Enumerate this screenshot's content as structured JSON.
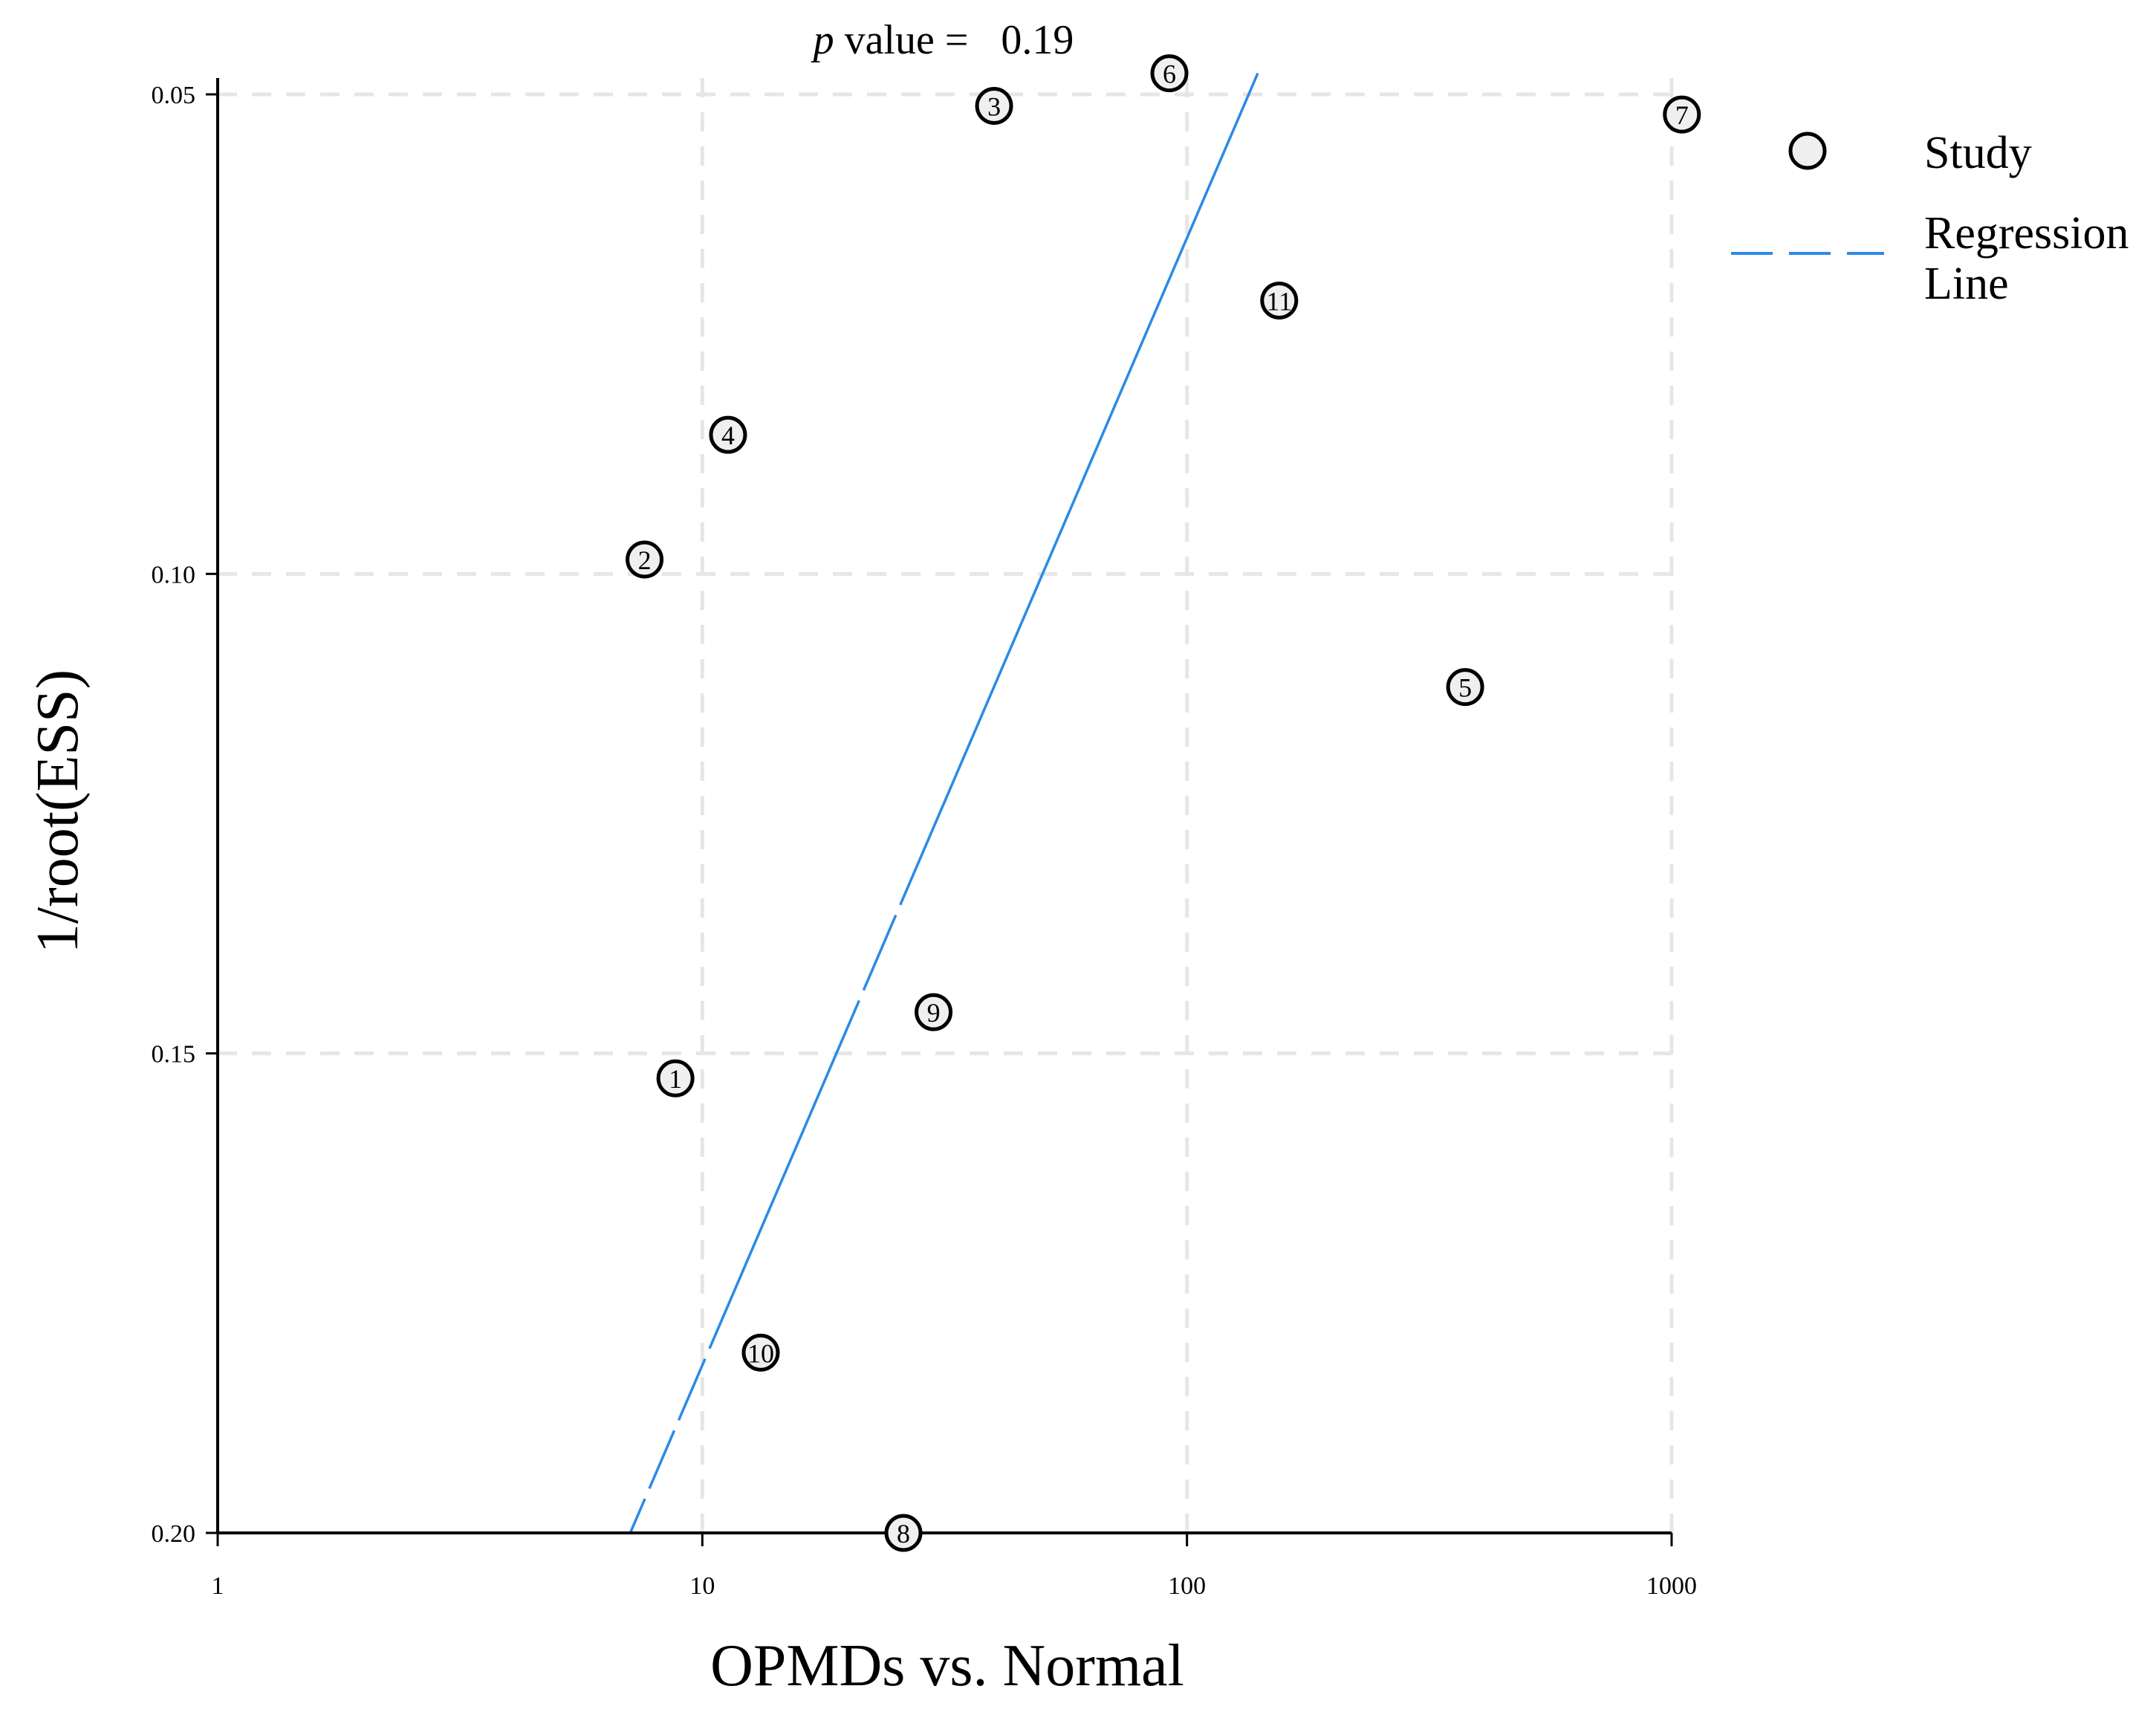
{
  "chart_data": {
    "type": "scatter",
    "title": "",
    "xlabel": "OPMDs vs. Normal",
    "ylabel": "1/root(ESS)",
    "x_scale": "log",
    "xlim": [
      1,
      1000
    ],
    "ylim": [
      0.05,
      0.2
    ],
    "y_inverted": true,
    "x_ticks": [
      1,
      10,
      100,
      1000
    ],
    "x_tick_labels": [
      "1",
      "10",
      "100",
      "1000"
    ],
    "y_ticks": [
      0.05,
      0.1,
      0.15,
      0.2
    ],
    "y_tick_labels": [
      "0.05",
      "0.10",
      "0.15",
      "0.20"
    ],
    "grid": true,
    "annotation": {
      "prefix": "p",
      "text": "value =",
      "value": "0.19"
    },
    "points": [
      {
        "label": "1",
        "x": 8.8,
        "y": 0.1526
      },
      {
        "label": "2",
        "x": 7.6,
        "y": 0.0985
      },
      {
        "label": "3",
        "x": 40,
        "y": 0.0512
      },
      {
        "label": "4",
        "x": 11.3,
        "y": 0.0855
      },
      {
        "label": "5",
        "x": 375,
        "y": 0.1118
      },
      {
        "label": "6",
        "x": 92,
        "y": 0.0478
      },
      {
        "label": "7",
        "x": 1050,
        "y": 0.0521
      },
      {
        "label": "8",
        "x": 26,
        "y": 0.2
      },
      {
        "label": "9",
        "x": 30,
        "y": 0.1457
      },
      {
        "label": "10",
        "x": 13.2,
        "y": 0.1812
      },
      {
        "label": "11",
        "x": 155,
        "y": 0.0715
      }
    ],
    "regression_line": {
      "x": [
        7.1,
        140
      ],
      "y": [
        0.2,
        0.0478
      ]
    },
    "legend": {
      "position": "top-right",
      "items": [
        {
          "label": "Study",
          "marker": "circle"
        },
        {
          "label": "Regression Line",
          "line1": "Regression",
          "line2": "Line",
          "marker": "dashed-line",
          "color": "#2b8ae6"
        }
      ]
    },
    "colors": {
      "line": "#2b8ae6",
      "grid": "#e6e6e6",
      "axis": "#000000",
      "marker_fill": "#efefef"
    }
  }
}
